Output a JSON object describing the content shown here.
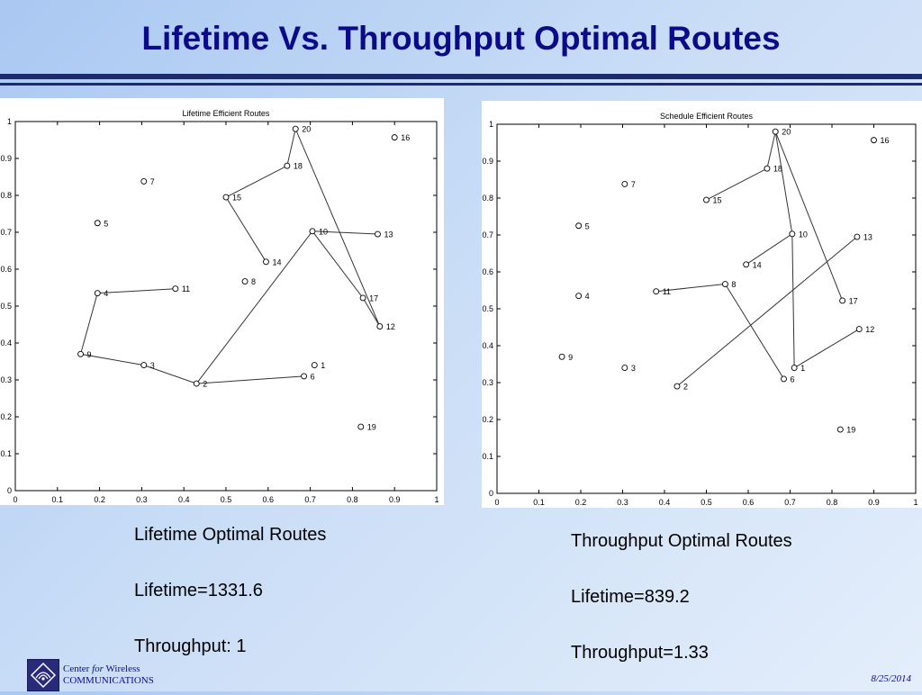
{
  "title": "Lifetime Vs. Throughput Optimal Routes",
  "chart_data": [
    {
      "type": "scatter",
      "title": "Lifetime Efficient Routes",
      "xlim": [
        0,
        1
      ],
      "ylim": [
        0,
        1
      ],
      "x_ticks": [
        "0",
        "0.1",
        "0.2",
        "0.3",
        "0.4",
        "0.5",
        "0.6",
        "0.7",
        "0.8",
        "0.9",
        "1"
      ],
      "y_ticks": [
        "0",
        "0.1",
        "0.2",
        "0.3",
        "0.4",
        "0.5",
        "0.6",
        "0.7",
        "0.8",
        "0.9",
        "1"
      ],
      "nodes": [
        {
          "id": "1",
          "x": 0.71,
          "y": 0.34
        },
        {
          "id": "2",
          "x": 0.43,
          "y": 0.29
        },
        {
          "id": "3",
          "x": 0.305,
          "y": 0.34
        },
        {
          "id": "4",
          "x": 0.195,
          "y": 0.535
        },
        {
          "id": "5",
          "x": 0.195,
          "y": 0.725
        },
        {
          "id": "6",
          "x": 0.685,
          "y": 0.31
        },
        {
          "id": "7",
          "x": 0.305,
          "y": 0.838
        },
        {
          "id": "8",
          "x": 0.545,
          "y": 0.567
        },
        {
          "id": "9",
          "x": 0.155,
          "y": 0.37
        },
        {
          "id": "10",
          "x": 0.705,
          "y": 0.703
        },
        {
          "id": "11",
          "x": 0.38,
          "y": 0.547
        },
        {
          "id": "12",
          "x": 0.865,
          "y": 0.445
        },
        {
          "id": "13",
          "x": 0.86,
          "y": 0.695
        },
        {
          "id": "14",
          "x": 0.595,
          "y": 0.62
        },
        {
          "id": "15",
          "x": 0.5,
          "y": 0.795
        },
        {
          "id": "16",
          "x": 0.9,
          "y": 0.957
        },
        {
          "id": "17",
          "x": 0.825,
          "y": 0.522
        },
        {
          "id": "18",
          "x": 0.645,
          "y": 0.88
        },
        {
          "id": "19",
          "x": 0.82,
          "y": 0.173
        },
        {
          "id": "20",
          "x": 0.665,
          "y": 0.98
        }
      ],
      "routes": [
        [
          "11",
          "4",
          "9",
          "3",
          "2",
          "6"
        ],
        [
          "2",
          "10",
          "17",
          "12",
          "20",
          "18",
          "15",
          "14"
        ],
        [
          "10",
          "13"
        ]
      ]
    },
    {
      "type": "scatter",
      "title": "Schedule Efficient Routes",
      "xlim": [
        0,
        1
      ],
      "ylim": [
        0,
        1
      ],
      "x_ticks": [
        "0",
        "0.1",
        "0.2",
        "0.3",
        "0.4",
        "0.5",
        "0.6",
        "0.7",
        "0.8",
        "0.9",
        "1"
      ],
      "y_ticks": [
        "0",
        "0.1",
        "0.2",
        "0.3",
        "0.4",
        "0.5",
        "0.6",
        "0.7",
        "0.8",
        "0.9",
        "1"
      ],
      "nodes": [
        {
          "id": "1",
          "x": 0.71,
          "y": 0.34
        },
        {
          "id": "2",
          "x": 0.43,
          "y": 0.29
        },
        {
          "id": "3",
          "x": 0.305,
          "y": 0.34
        },
        {
          "id": "4",
          "x": 0.195,
          "y": 0.535
        },
        {
          "id": "5",
          "x": 0.195,
          "y": 0.725
        },
        {
          "id": "6",
          "x": 0.685,
          "y": 0.31
        },
        {
          "id": "7",
          "x": 0.305,
          "y": 0.838
        },
        {
          "id": "8",
          "x": 0.545,
          "y": 0.567
        },
        {
          "id": "9",
          "x": 0.155,
          "y": 0.37
        },
        {
          "id": "10",
          "x": 0.705,
          "y": 0.703
        },
        {
          "id": "11",
          "x": 0.38,
          "y": 0.547
        },
        {
          "id": "12",
          "x": 0.865,
          "y": 0.445
        },
        {
          "id": "13",
          "x": 0.86,
          "y": 0.695
        },
        {
          "id": "14",
          "x": 0.595,
          "y": 0.62
        },
        {
          "id": "15",
          "x": 0.5,
          "y": 0.795
        },
        {
          "id": "16",
          "x": 0.9,
          "y": 0.957
        },
        {
          "id": "17",
          "x": 0.825,
          "y": 0.522
        },
        {
          "id": "18",
          "x": 0.645,
          "y": 0.88
        },
        {
          "id": "19",
          "x": 0.82,
          "y": 0.173
        },
        {
          "id": "20",
          "x": 0.665,
          "y": 0.98
        }
      ],
      "routes": [
        [
          "15",
          "18",
          "20",
          "10",
          "14"
        ],
        [
          "20",
          "17"
        ],
        [
          "10",
          "1",
          "12"
        ],
        [
          "11",
          "8",
          "6"
        ],
        [
          "2",
          "13"
        ]
      ]
    }
  ],
  "captions": {
    "left": {
      "heading": "Lifetime Optimal Routes",
      "metric1": "Lifetime=1331.6",
      "metric2": "Throughput: 1"
    },
    "right": {
      "heading": "Throughput Optimal Routes",
      "metric1": "Lifetime=839.2",
      "metric2": "Throughput=1.33"
    }
  },
  "footer": {
    "org_line1_a": "Center ",
    "org_line1_b": "for",
    "org_line1_c": " Wireless",
    "org_line2": "COMMUNICATIONS",
    "date": "8/25/2014"
  },
  "colors": {
    "title": "#0b0b8a",
    "rule": "#1c2a6e",
    "line": "#333333"
  }
}
